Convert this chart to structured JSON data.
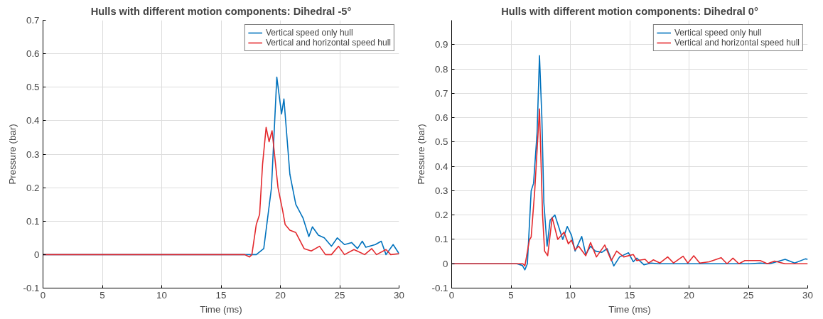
{
  "chart_data": [
    {
      "type": "line",
      "title": "Hulls with different motion components: Dihedral -5°",
      "xlabel": "Time (ms)",
      "ylabel": "Pressure (bar)",
      "xlim": [
        0,
        30
      ],
      "ylim": [
        -0.1,
        0.7
      ],
      "xticks": [
        0,
        5,
        10,
        15,
        20,
        25,
        30
      ],
      "yticks": [
        -0.1,
        0,
        0.1,
        0.2,
        0.3,
        0.4,
        0.5,
        0.6,
        0.7
      ],
      "grid": true,
      "legend": "top right",
      "line_style": "solid",
      "series": [
        {
          "name": "Vertical speed only hull",
          "color": "#0072bd",
          "x": [
            0,
            17.3,
            17.97,
            18.6,
            19.25,
            19.7,
            20.1,
            20.3,
            20.8,
            21.3,
            21.9,
            22.4,
            22.7,
            23.2,
            23.7,
            24.3,
            24.8,
            25.4,
            26.0,
            26.5,
            26.9,
            27.2,
            28.0,
            28.5,
            28.9,
            29.5,
            30
          ],
          "values": [
            0,
            0,
            0,
            0.018,
            0.2,
            0.53,
            0.42,
            0.465,
            0.24,
            0.15,
            0.11,
            0.054,
            0.083,
            0.058,
            0.05,
            0.025,
            0.05,
            0.03,
            0.036,
            0.018,
            0.04,
            0.022,
            0.03,
            0.04,
            0,
            0.03,
            0.003
          ]
        },
        {
          "name": "Vertical and horizontal speed hull",
          "color": "#e3292d",
          "x": [
            0,
            17.0,
            17.4,
            17.6,
            17.97,
            18.25,
            18.5,
            18.8,
            19.05,
            19.3,
            19.8,
            20.2,
            20.4,
            20.8,
            21.3,
            22.0,
            22.6,
            23.3,
            23.8,
            24.3,
            24.9,
            25.4,
            26.2,
            27.1,
            27.7,
            28.1,
            28.9,
            29.3,
            30
          ],
          "values": [
            0,
            0,
            -0.007,
            0,
            0.09,
            0.12,
            0.27,
            0.38,
            0.337,
            0.37,
            0.2,
            0.13,
            0.09,
            0.073,
            0.066,
            0.018,
            0.011,
            0.025,
            0,
            0,
            0.025,
            0,
            0.015,
            0,
            0.018,
            0,
            0.015,
            0,
            0.003
          ]
        }
      ]
    },
    {
      "type": "line",
      "title": "Hulls with different motion components: Dihedral 0°",
      "xlabel": "Time (ms)",
      "ylabel": "Pressure (bar)",
      "xlim": [
        0,
        30
      ],
      "ylim": [
        -0.1,
        1.0
      ],
      "xticks": [
        0,
        5,
        10,
        15,
        20,
        25,
        30
      ],
      "yticks": [
        -0.1,
        0,
        0.1,
        0.2,
        0.3,
        0.4,
        0.5,
        0.6,
        0.7,
        0.8,
        0.9
      ],
      "grid": true,
      "legend": "top right",
      "line_style": "solid",
      "series": [
        {
          "name": "Vertical speed only hull",
          "color": "#0072bd",
          "x": [
            0,
            5.5,
            5.96,
            6.17,
            6.38,
            6.7,
            6.9,
            7.2,
            7.4,
            7.6,
            7.77,
            8.04,
            8.3,
            8.7,
            9.36,
            9.74,
            10.1,
            10.4,
            10.96,
            11.3,
            11.7,
            12.1,
            12.66,
            13.1,
            13.66,
            14.15,
            14.9,
            15.3,
            15.6,
            16.2,
            16.8,
            17.4,
            25.1,
            26.0,
            26.8,
            28.1,
            28.9,
            29.8,
            30
          ],
          "values": [
            0,
            0,
            -0.007,
            -0.025,
            0,
            0.3,
            0.33,
            0.54,
            0.855,
            0.6,
            0.25,
            0.072,
            0.18,
            0.2,
            0.1,
            0.153,
            0.117,
            0.052,
            0.112,
            0.038,
            0.072,
            0.052,
            0.047,
            0.062,
            -0.009,
            0.028,
            0.045,
            0.008,
            0.023,
            -0.004,
            0.003,
            0,
            0,
            0.003,
            0,
            0.018,
            0.003,
            0.02,
            0.018
          ]
        },
        {
          "name": "Vertical and horizontal speed hull",
          "color": "#e3292d",
          "x": [
            0,
            6.0,
            6.17,
            6.55,
            6.7,
            7.0,
            7.4,
            7.66,
            7.83,
            8.09,
            8.47,
            8.94,
            9.47,
            9.83,
            10.1,
            10.4,
            10.7,
            11.3,
            11.7,
            12.2,
            12.9,
            13.45,
            13.9,
            14.5,
            15.3,
            15.6,
            16.3,
            16.6,
            17.0,
            17.55,
            18.2,
            18.7,
            19.5,
            19.9,
            20.4,
            20.9,
            21.7,
            22.7,
            23.2,
            23.7,
            24.2,
            24.7,
            26.0,
            26.6,
            27.2,
            28.1,
            30
          ],
          "values": [
            0,
            0,
            -0.009,
            0.097,
            0.11,
            0.3,
            0.636,
            0.2,
            0.052,
            0.033,
            0.19,
            0.1,
            0.13,
            0.082,
            0.097,
            0.057,
            0.072,
            0.033,
            0.087,
            0.028,
            0.077,
            0.013,
            0.052,
            0.028,
            0.038,
            0.013,
            0.018,
            0.003,
            0.016,
            0.003,
            0.028,
            0.003,
            0.031,
            0.003,
            0.033,
            0.003,
            0.008,
            0.025,
            0,
            0.023,
            0,
            0.013,
            0.013,
            0,
            0.011,
            0,
            0
          ]
        }
      ]
    }
  ]
}
